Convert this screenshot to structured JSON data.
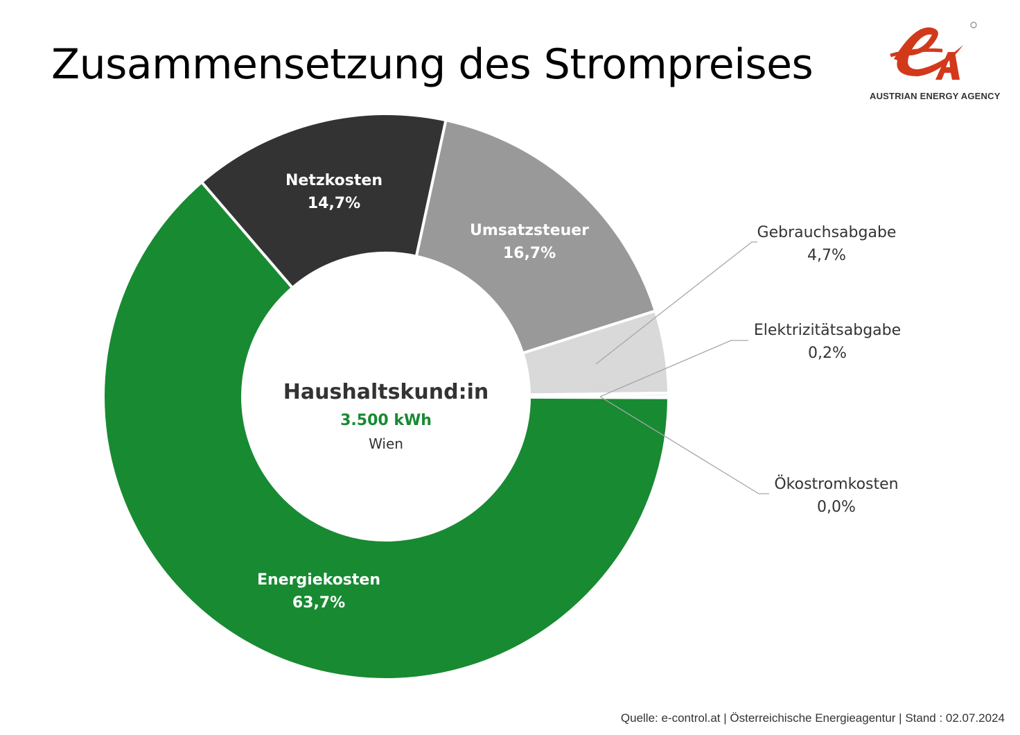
{
  "title": "Zusammensetzung des Strompreises",
  "logo": {
    "text": "AUSTRIAN ENERGY AGENCY",
    "brand_color": "#d2391b"
  },
  "center": {
    "line1": "Haushaltskund:in",
    "line2": "3.500 kWh",
    "line3": "Wien",
    "line2_color": "#188a32"
  },
  "footer": "Quelle: e-control.at | Österreichische Energieagentur | Stand : 02.07.2024",
  "chart_data": {
    "type": "pie",
    "subtype": "donut",
    "start_angle": "3 o'clock, clockwise",
    "slices": [
      {
        "label": "Energiekosten",
        "value": 63.7,
        "display": "63,7%",
        "color": "#188a32"
      },
      {
        "label": "Netzkosten",
        "value": 14.7,
        "display": "14,7%",
        "color": "#333333"
      },
      {
        "label": "Umsatzsteuer",
        "value": 16.7,
        "display": "16,7%",
        "color": "#999999"
      },
      {
        "label": "Gebrauchsabgabe",
        "value": 4.7,
        "display": "4,7%",
        "color": "#d9d9d9"
      },
      {
        "label": "Elektrizitätsabgabe",
        "value": 0.2,
        "display": "0,2%",
        "color": "#e6ecf5"
      },
      {
        "label": "Ökostromkosten",
        "value": 0.0,
        "display": "0,0%",
        "color": "#c9d6ea"
      }
    ]
  }
}
